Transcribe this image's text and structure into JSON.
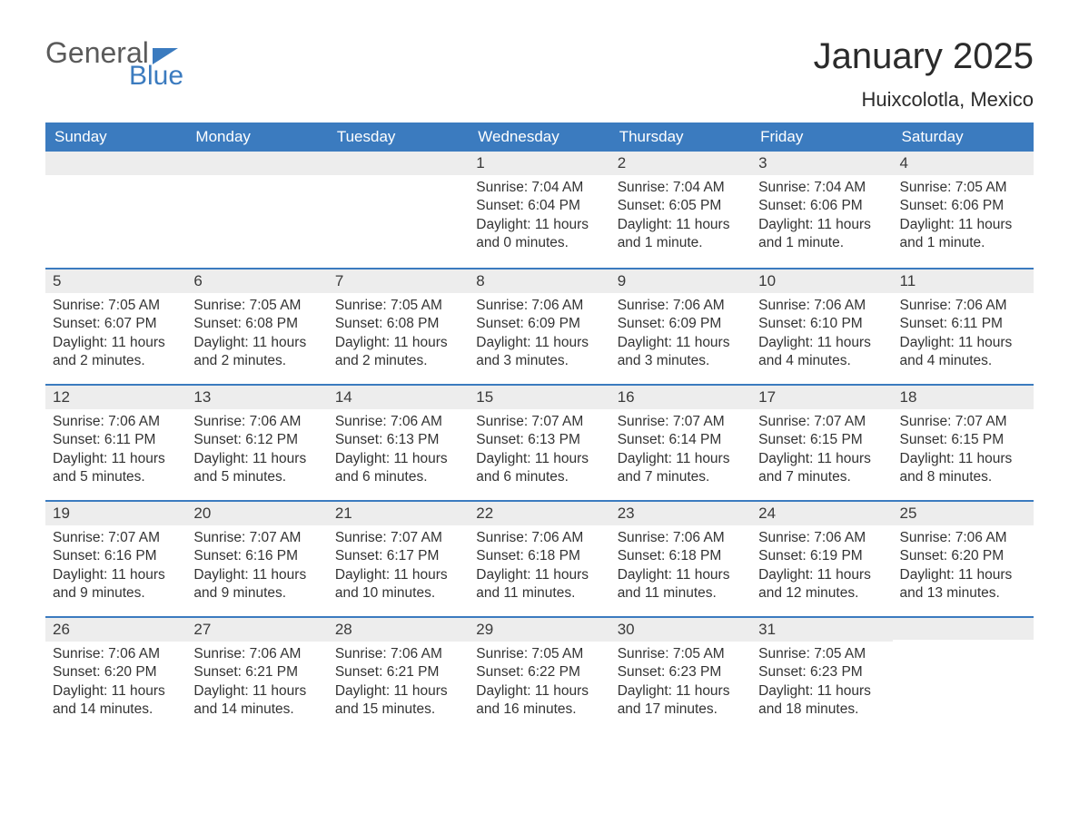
{
  "colors": {
    "brand_blue": "#3b7bbf",
    "header_text": "#2b2b2b",
    "body_text": "#333333",
    "daynum_bg": "#ededed",
    "page_bg": "#ffffff",
    "logo_gray": "#5a5a5a"
  },
  "typography": {
    "title_fontsize": 40,
    "location_fontsize": 22,
    "weekday_fontsize": 17,
    "daynum_fontsize": 17,
    "body_fontsize": 15.5
  },
  "logo": {
    "general": "General",
    "blue": "Blue"
  },
  "title": "January 2025",
  "location": "Huixcolotla, Mexico",
  "weekdays": [
    "Sunday",
    "Monday",
    "Tuesday",
    "Wednesday",
    "Thursday",
    "Friday",
    "Saturday"
  ],
  "weeks": [
    [
      null,
      null,
      null,
      {
        "day": "1",
        "sunrise": "Sunrise: 7:04 AM",
        "sunset": "Sunset: 6:04 PM",
        "daylight": "Daylight: 11 hours and 0 minutes."
      },
      {
        "day": "2",
        "sunrise": "Sunrise: 7:04 AM",
        "sunset": "Sunset: 6:05 PM",
        "daylight": "Daylight: 11 hours and 1 minute."
      },
      {
        "day": "3",
        "sunrise": "Sunrise: 7:04 AM",
        "sunset": "Sunset: 6:06 PM",
        "daylight": "Daylight: 11 hours and 1 minute."
      },
      {
        "day": "4",
        "sunrise": "Sunrise: 7:05 AM",
        "sunset": "Sunset: 6:06 PM",
        "daylight": "Daylight: 11 hours and 1 minute."
      }
    ],
    [
      {
        "day": "5",
        "sunrise": "Sunrise: 7:05 AM",
        "sunset": "Sunset: 6:07 PM",
        "daylight": "Daylight: 11 hours and 2 minutes."
      },
      {
        "day": "6",
        "sunrise": "Sunrise: 7:05 AM",
        "sunset": "Sunset: 6:08 PM",
        "daylight": "Daylight: 11 hours and 2 minutes."
      },
      {
        "day": "7",
        "sunrise": "Sunrise: 7:05 AM",
        "sunset": "Sunset: 6:08 PM",
        "daylight": "Daylight: 11 hours and 2 minutes."
      },
      {
        "day": "8",
        "sunrise": "Sunrise: 7:06 AM",
        "sunset": "Sunset: 6:09 PM",
        "daylight": "Daylight: 11 hours and 3 minutes."
      },
      {
        "day": "9",
        "sunrise": "Sunrise: 7:06 AM",
        "sunset": "Sunset: 6:09 PM",
        "daylight": "Daylight: 11 hours and 3 minutes."
      },
      {
        "day": "10",
        "sunrise": "Sunrise: 7:06 AM",
        "sunset": "Sunset: 6:10 PM",
        "daylight": "Daylight: 11 hours and 4 minutes."
      },
      {
        "day": "11",
        "sunrise": "Sunrise: 7:06 AM",
        "sunset": "Sunset: 6:11 PM",
        "daylight": "Daylight: 11 hours and 4 minutes."
      }
    ],
    [
      {
        "day": "12",
        "sunrise": "Sunrise: 7:06 AM",
        "sunset": "Sunset: 6:11 PM",
        "daylight": "Daylight: 11 hours and 5 minutes."
      },
      {
        "day": "13",
        "sunrise": "Sunrise: 7:06 AM",
        "sunset": "Sunset: 6:12 PM",
        "daylight": "Daylight: 11 hours and 5 minutes."
      },
      {
        "day": "14",
        "sunrise": "Sunrise: 7:06 AM",
        "sunset": "Sunset: 6:13 PM",
        "daylight": "Daylight: 11 hours and 6 minutes."
      },
      {
        "day": "15",
        "sunrise": "Sunrise: 7:07 AM",
        "sunset": "Sunset: 6:13 PM",
        "daylight": "Daylight: 11 hours and 6 minutes."
      },
      {
        "day": "16",
        "sunrise": "Sunrise: 7:07 AM",
        "sunset": "Sunset: 6:14 PM",
        "daylight": "Daylight: 11 hours and 7 minutes."
      },
      {
        "day": "17",
        "sunrise": "Sunrise: 7:07 AM",
        "sunset": "Sunset: 6:15 PM",
        "daylight": "Daylight: 11 hours and 7 minutes."
      },
      {
        "day": "18",
        "sunrise": "Sunrise: 7:07 AM",
        "sunset": "Sunset: 6:15 PM",
        "daylight": "Daylight: 11 hours and 8 minutes."
      }
    ],
    [
      {
        "day": "19",
        "sunrise": "Sunrise: 7:07 AM",
        "sunset": "Sunset: 6:16 PM",
        "daylight": "Daylight: 11 hours and 9 minutes."
      },
      {
        "day": "20",
        "sunrise": "Sunrise: 7:07 AM",
        "sunset": "Sunset: 6:16 PM",
        "daylight": "Daylight: 11 hours and 9 minutes."
      },
      {
        "day": "21",
        "sunrise": "Sunrise: 7:07 AM",
        "sunset": "Sunset: 6:17 PM",
        "daylight": "Daylight: 11 hours and 10 minutes."
      },
      {
        "day": "22",
        "sunrise": "Sunrise: 7:06 AM",
        "sunset": "Sunset: 6:18 PM",
        "daylight": "Daylight: 11 hours and 11 minutes."
      },
      {
        "day": "23",
        "sunrise": "Sunrise: 7:06 AM",
        "sunset": "Sunset: 6:18 PM",
        "daylight": "Daylight: 11 hours and 11 minutes."
      },
      {
        "day": "24",
        "sunrise": "Sunrise: 7:06 AM",
        "sunset": "Sunset: 6:19 PM",
        "daylight": "Daylight: 11 hours and 12 minutes."
      },
      {
        "day": "25",
        "sunrise": "Sunrise: 7:06 AM",
        "sunset": "Sunset: 6:20 PM",
        "daylight": "Daylight: 11 hours and 13 minutes."
      }
    ],
    [
      {
        "day": "26",
        "sunrise": "Sunrise: 7:06 AM",
        "sunset": "Sunset: 6:20 PM",
        "daylight": "Daylight: 11 hours and 14 minutes."
      },
      {
        "day": "27",
        "sunrise": "Sunrise: 7:06 AM",
        "sunset": "Sunset: 6:21 PM",
        "daylight": "Daylight: 11 hours and 14 minutes."
      },
      {
        "day": "28",
        "sunrise": "Sunrise: 7:06 AM",
        "sunset": "Sunset: 6:21 PM",
        "daylight": "Daylight: 11 hours and 15 minutes."
      },
      {
        "day": "29",
        "sunrise": "Sunrise: 7:05 AM",
        "sunset": "Sunset: 6:22 PM",
        "daylight": "Daylight: 11 hours and 16 minutes."
      },
      {
        "day": "30",
        "sunrise": "Sunrise: 7:05 AM",
        "sunset": "Sunset: 6:23 PM",
        "daylight": "Daylight: 11 hours and 17 minutes."
      },
      {
        "day": "31",
        "sunrise": "Sunrise: 7:05 AM",
        "sunset": "Sunset: 6:23 PM",
        "daylight": "Daylight: 11 hours and 18 minutes."
      },
      null
    ]
  ]
}
